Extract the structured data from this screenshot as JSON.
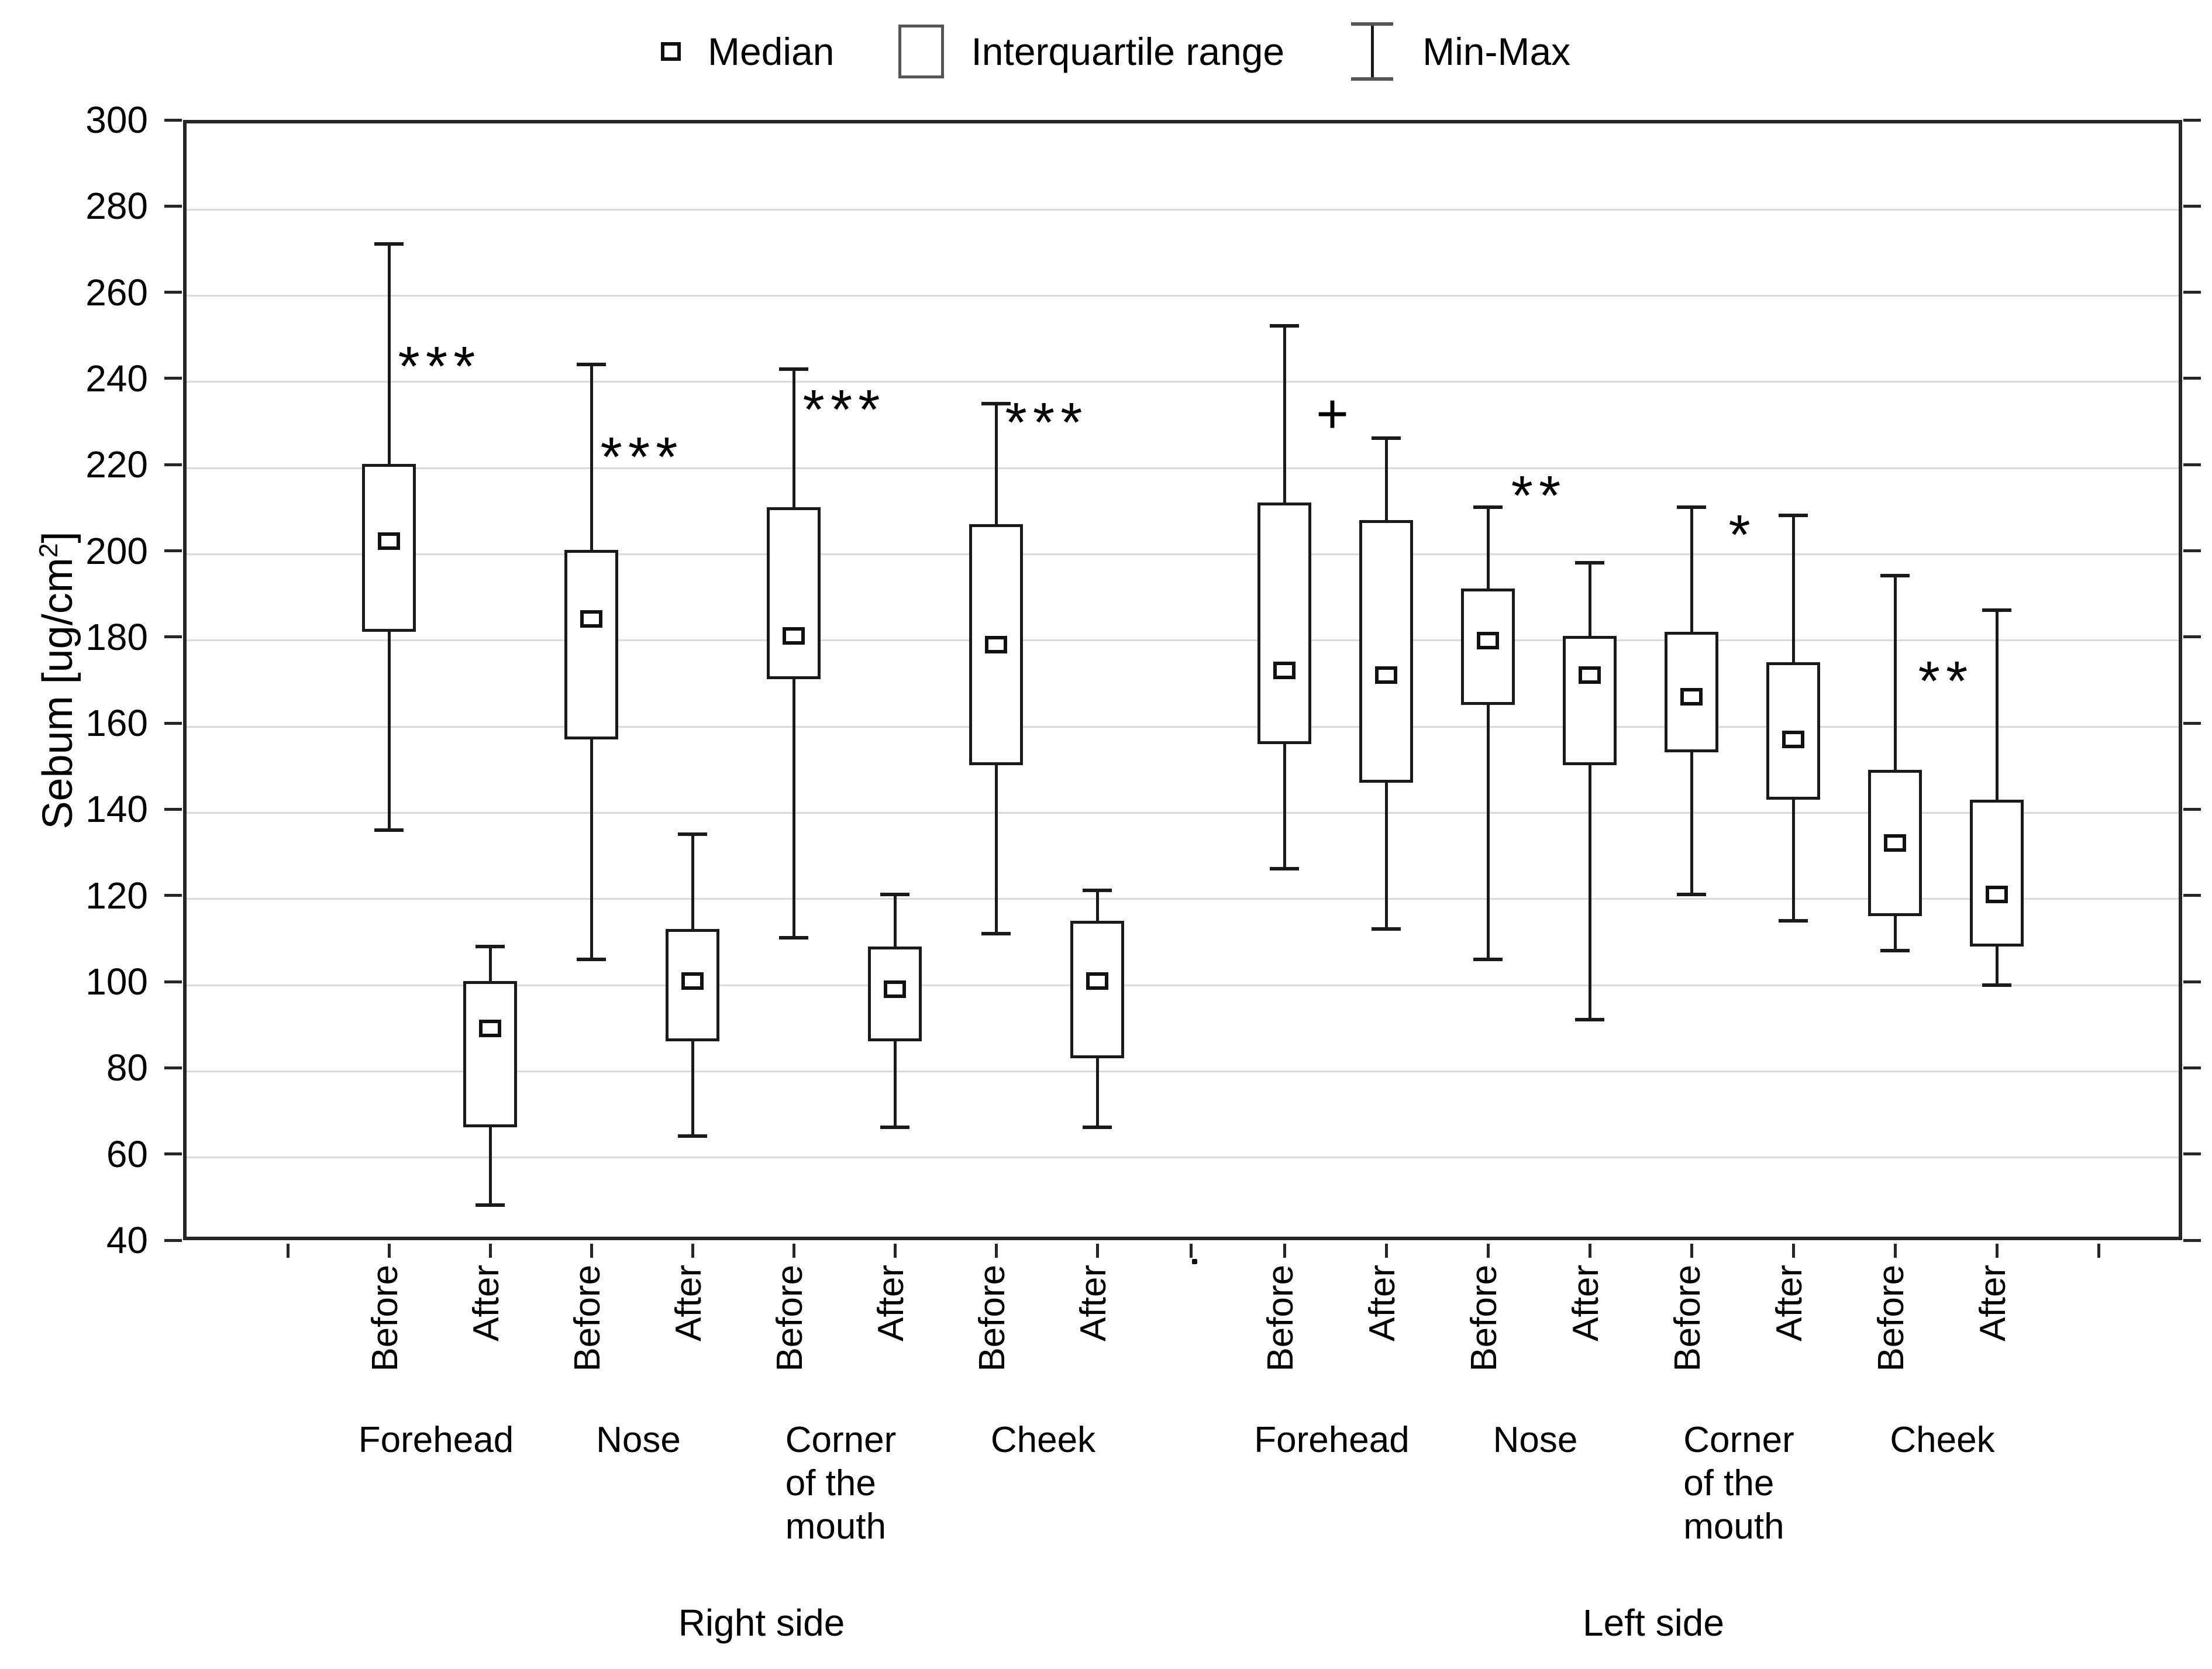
{
  "chart_data": {
    "type": "box",
    "title": "",
    "ylabel": {
      "prefix": "Sebum [ug/cm",
      "sup": "2",
      "suffix": "]"
    },
    "ylim": [
      40,
      300
    ],
    "ytick_step": 20,
    "grid": "horizontal",
    "legend_position": "top",
    "legend": [
      {
        "icon": "median-square-icon",
        "label": "Median"
      },
      {
        "icon": "interquartile-box-icon",
        "label": "Interquartile range"
      },
      {
        "icon": "minmax-whisker-icon",
        "label": "Min-Max"
      }
    ],
    "gap_dot": ".",
    "sides": [
      {
        "label": "Right side",
        "groups": [
          {
            "label": "Forehead",
            "label_lines": [
              "Forehead"
            ],
            "sig": "***",
            "sig_y": 247,
            "boxes": [
              {
                "label": "Before",
                "min": 136,
                "q1": 182,
                "median": 203,
                "q3": 221,
                "max": 272
              },
              {
                "label": "After",
                "min": 49,
                "q1": 67,
                "median": 90,
                "q3": 101,
                "max": 109
              }
            ]
          },
          {
            "label": "Nose",
            "label_lines": [
              "Nose"
            ],
            "sig": "***",
            "sig_y": 226,
            "boxes": [
              {
                "label": "Before",
                "min": 106,
                "q1": 157,
                "median": 185,
                "q3": 201,
                "max": 244
              },
              {
                "label": "After",
                "min": 65,
                "q1": 87,
                "median": 101,
                "q3": 113,
                "max": 135
              }
            ]
          },
          {
            "label": "Corner of the mouth",
            "label_lines": [
              "Corner",
              "of the",
              "mouth"
            ],
            "sig": "***",
            "sig_y": 237,
            "boxes": [
              {
                "label": "Before",
                "min": 111,
                "q1": 171,
                "median": 181,
                "q3": 211,
                "max": 243
              },
              {
                "label": "After",
                "min": 67,
                "q1": 87,
                "median": 99,
                "q3": 109,
                "max": 121
              }
            ]
          },
          {
            "label": "Cheek",
            "label_lines": [
              "Cheek"
            ],
            "sig": "***",
            "sig_y": 234,
            "boxes": [
              {
                "label": "Before",
                "min": 112,
                "q1": 151,
                "median": 179,
                "q3": 207,
                "max": 235
              },
              {
                "label": "After",
                "min": 67,
                "q1": 83,
                "median": 101,
                "q3": 115,
                "max": 122
              }
            ]
          }
        ]
      },
      {
        "label": "Left side",
        "groups": [
          {
            "label": "Forehead",
            "label_lines": [
              "Forehead"
            ],
            "sig": "+",
            "sig_y": 233,
            "boxes": [
              {
                "label": "Before",
                "min": 127,
                "q1": 156,
                "median": 173,
                "q3": 212,
                "max": 253
              },
              {
                "label": "After",
                "min": 113,
                "q1": 147,
                "median": 172,
                "q3": 208,
                "max": 227
              }
            ]
          },
          {
            "label": "Nose",
            "label_lines": [
              "Nose"
            ],
            "sig": "**",
            "sig_y": 217,
            "boxes": [
              {
                "label": "Before",
                "min": 106,
                "q1": 165,
                "median": 180,
                "q3": 192,
                "max": 211
              },
              {
                "label": "After",
                "min": 92,
                "q1": 151,
                "median": 172,
                "q3": 181,
                "max": 198
              }
            ]
          },
          {
            "label": "Corner of the mouth",
            "label_lines": [
              "Corner",
              "of the",
              "mouth"
            ],
            "sig": "*",
            "sig_y": 208,
            "boxes": [
              {
                "label": "Before",
                "min": 121,
                "q1": 154,
                "median": 167,
                "q3": 182,
                "max": 211
              },
              {
                "label": "After",
                "min": 115,
                "q1": 143,
                "median": 157,
                "q3": 175,
                "max": 209
              }
            ]
          },
          {
            "label": "Cheek",
            "label_lines": [
              "Cheek"
            ],
            "sig": "**",
            "sig_y": 174,
            "boxes": [
              {
                "label": "Before",
                "min": 108,
                "q1": 116,
                "median": 133,
                "q3": 150,
                "max": 195
              },
              {
                "label": "After",
                "min": 100,
                "q1": 109,
                "median": 121,
                "q3": 143,
                "max": 187
              }
            ]
          }
        ]
      }
    ]
  },
  "colors": {
    "ink": "#000000",
    "line": "#1a1a1a",
    "grid": "#dadada",
    "background": "#ffffff"
  }
}
